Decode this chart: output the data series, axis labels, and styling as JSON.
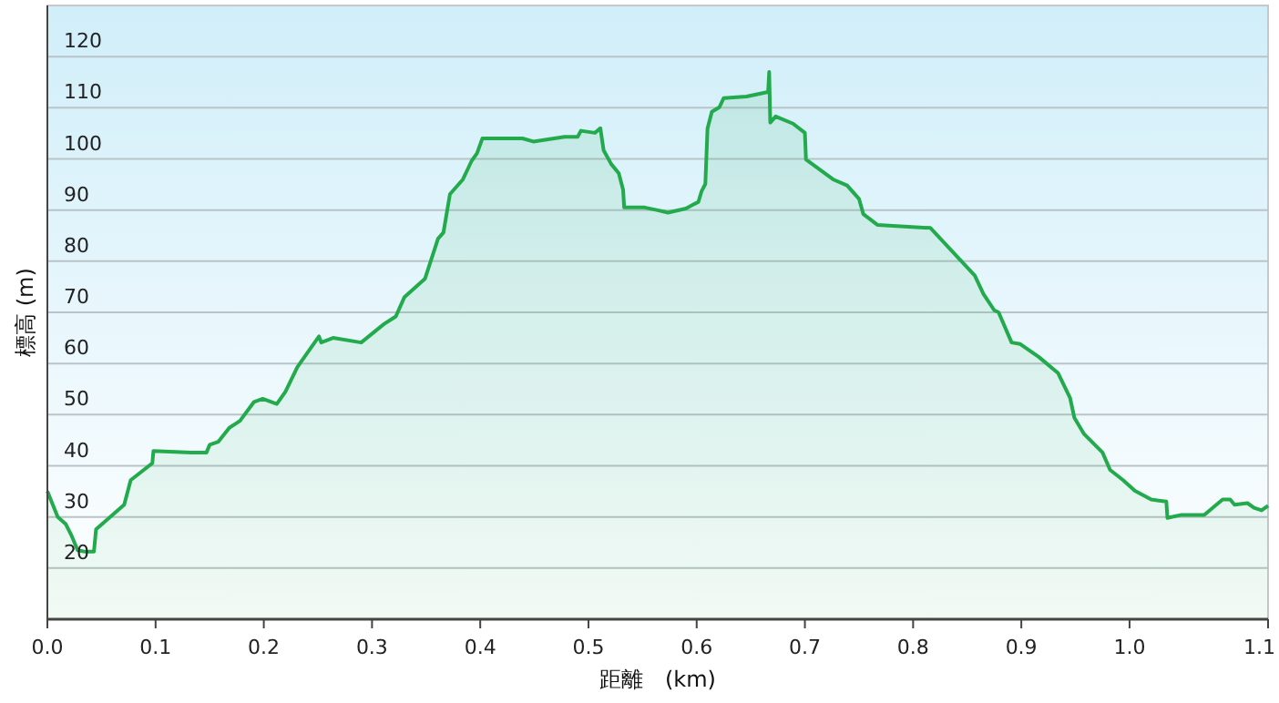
{
  "chart_data": {
    "type": "area",
    "xlabel": "距離　(km)",
    "ylabel": "標高 (m)",
    "xlim": [
      0,
      1.128
    ],
    "xticks": [
      {
        "value": 0,
        "label": "0.0"
      },
      {
        "value": 0.1,
        "label": "0.1"
      },
      0.2,
      0.3,
      0.4,
      0.5,
      0.6,
      0.7,
      0.8,
      0.9,
      {
        "value": 1,
        "label": "1.0"
      },
      {
        "value": 1.128,
        "label": "1.1"
      }
    ],
    "ylim": [
      10,
      130
    ],
    "yticks": [
      20,
      30,
      40,
      50,
      60,
      70,
      80,
      90,
      100,
      110,
      120
    ],
    "grid": "y",
    "marker": "none",
    "line_style": "solid",
    "series": [
      {
        "color": "#22aa4c",
        "x": [
          0,
          0.0096,
          0.017,
          0.022,
          0.028,
          0.035,
          0.043,
          0.045,
          0.071,
          0.077,
          0.097,
          0.098,
          0.133,
          0.147,
          0.15,
          0.158,
          0.168,
          0.178,
          0.191,
          0.199,
          0.212,
          0.22,
          0.231,
          0.244,
          0.251,
          0.253,
          0.264,
          0.29,
          0.311,
          0.322,
          0.33,
          0.349,
          0.361,
          0.366,
          0.372,
          0.384,
          0.392,
          0.397,
          0.402,
          0.439,
          0.449,
          0.478,
          0.49,
          0.493,
          0.506,
          0.511,
          0.514,
          0.521,
          0.528,
          0.532,
          0.533,
          0.552,
          0.563,
          0.5735,
          0.59,
          0.6016,
          0.6044,
          0.608,
          0.61,
          0.614,
          0.621,
          0.625,
          0.646,
          0.666,
          0.667,
          0.668,
          0.673,
          0.689,
          0.7,
          0.701,
          0.726,
          0.739,
          0.75,
          0.754,
          0.767,
          0.816,
          0.857,
          0.865,
          0.875,
          0.879,
          0.891,
          0.899,
          0.916,
          0.934,
          0.945,
          0.949,
          0.958,
          0.975,
          0.982,
          0.994,
          1.005,
          1.02,
          1.034,
          1.035,
          1.048,
          1.069,
          1.086,
          1.093,
          1.097,
          1.109,
          1.115,
          1.122,
          1.128
        ],
        "values": [
          35,
          30,
          28.6,
          26.5,
          23.5,
          23.2,
          23.2,
          27.6,
          32.4,
          37.2,
          40.5,
          42.9,
          42.6,
          42.6,
          44.1,
          44.7,
          47.4,
          48.8,
          52.5,
          53.1,
          52.1,
          54.5,
          59.3,
          63.2,
          65.3,
          64.1,
          65,
          64.1,
          67.7,
          69.2,
          73,
          76.6,
          84.4,
          85.6,
          93.1,
          96,
          99.6,
          101.1,
          104,
          104,
          103.4,
          104.3,
          104.3,
          105.5,
          105.1,
          106,
          101.7,
          99,
          97.2,
          94,
          90.5,
          90.5,
          90,
          89.5,
          90.3,
          91.6,
          93.6,
          95.1,
          105.9,
          109.2,
          110.1,
          111.9,
          112.2,
          113.1,
          117,
          107.1,
          108.3,
          106.9,
          105.1,
          99.9,
          96,
          94.8,
          92.2,
          89.2,
          87.1,
          86.5,
          77.2,
          73.6,
          70.4,
          70,
          64.1,
          63.8,
          61.3,
          58.1,
          53.3,
          49.4,
          46.2,
          42.6,
          39.2,
          37.2,
          35.1,
          33.4,
          33,
          29.8,
          30.4,
          30.4,
          33.4,
          33.4,
          32.4,
          32.7,
          31.8,
          31.3,
          32.2
        ]
      }
    ]
  }
}
